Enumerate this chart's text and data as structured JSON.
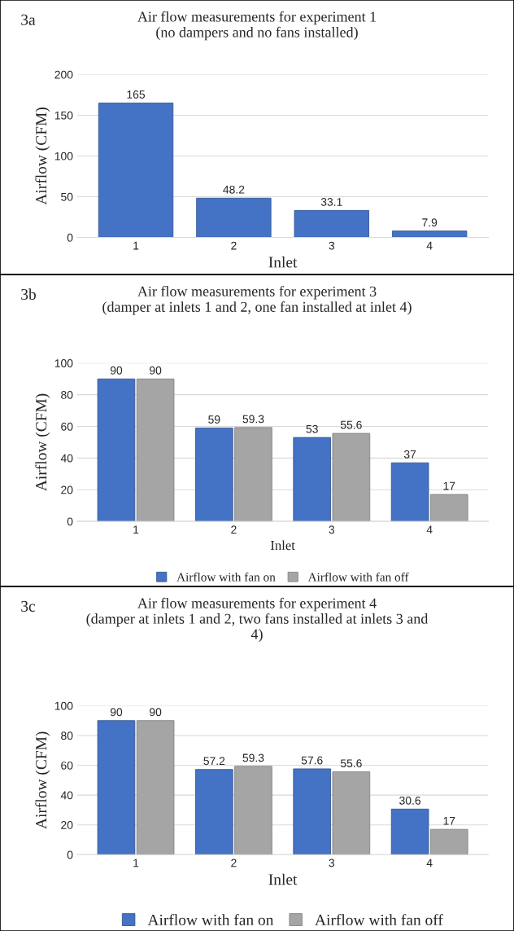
{
  "chart_data": [
    {
      "type": "bar",
      "title": "Air flow measurements for experiment 1\n(no dampers and no fans installed)",
      "xlabel": "Inlet",
      "ylabel": "Airflow (CFM)",
      "annotations": [
        "3a"
      ],
      "categories": [
        "1",
        "2",
        "3",
        "4"
      ],
      "values": [
        165,
        48.2,
        33.1,
        7.9
      ],
      "color": "#4472c4",
      "ylim": [
        0,
        200
      ],
      "yticks": [
        0,
        50,
        100,
        150,
        200
      ],
      "grid": "y",
      "data_labels": true
    },
    {
      "type": "bar",
      "title": "Air flow measurements for experiment 3\n(damper at inlets 1 and 2, one fan installed at inlet 4)",
      "xlabel": "Inlet",
      "ylabel": "Airflow (CFM)",
      "annotations": [
        "3b"
      ],
      "categories": [
        "1",
        "2",
        "3",
        "4"
      ],
      "series": [
        {
          "name": "Airflow with fan on",
          "color": "#4472c4",
          "values": [
            90,
            59,
            53,
            37
          ]
        },
        {
          "name": "Airflow with fan off",
          "color": "#a5a5a5",
          "values": [
            90,
            59.3,
            55.6,
            17
          ]
        }
      ],
      "ylim": [
        0,
        100
      ],
      "yticks": [
        0,
        20,
        40,
        60,
        80,
        100
      ],
      "grid": "y",
      "legend": "bottom",
      "data_labels": true
    },
    {
      "type": "bar",
      "title": "Air flow measurements for experiment 4\n(damper at inlets 1 and 2, two fans installed at inlets 3 and\n4)",
      "xlabel": "Inlet",
      "ylabel": "Airflow (CFM)",
      "annotations": [
        "3c"
      ],
      "categories": [
        "1",
        "2",
        "3",
        "4"
      ],
      "series": [
        {
          "name": "Airflow with fan on",
          "color": "#4472c4",
          "values": [
            90,
            57.2,
            57.6,
            30.6
          ]
        },
        {
          "name": "Airflow with fan off",
          "color": "#a5a5a5",
          "values": [
            90,
            59.3,
            55.6,
            17
          ]
        }
      ],
      "ylim": [
        0,
        100
      ],
      "yticks": [
        0,
        20,
        40,
        60,
        80,
        100
      ],
      "grid": "y",
      "legend": "bottom",
      "data_labels": true
    }
  ]
}
